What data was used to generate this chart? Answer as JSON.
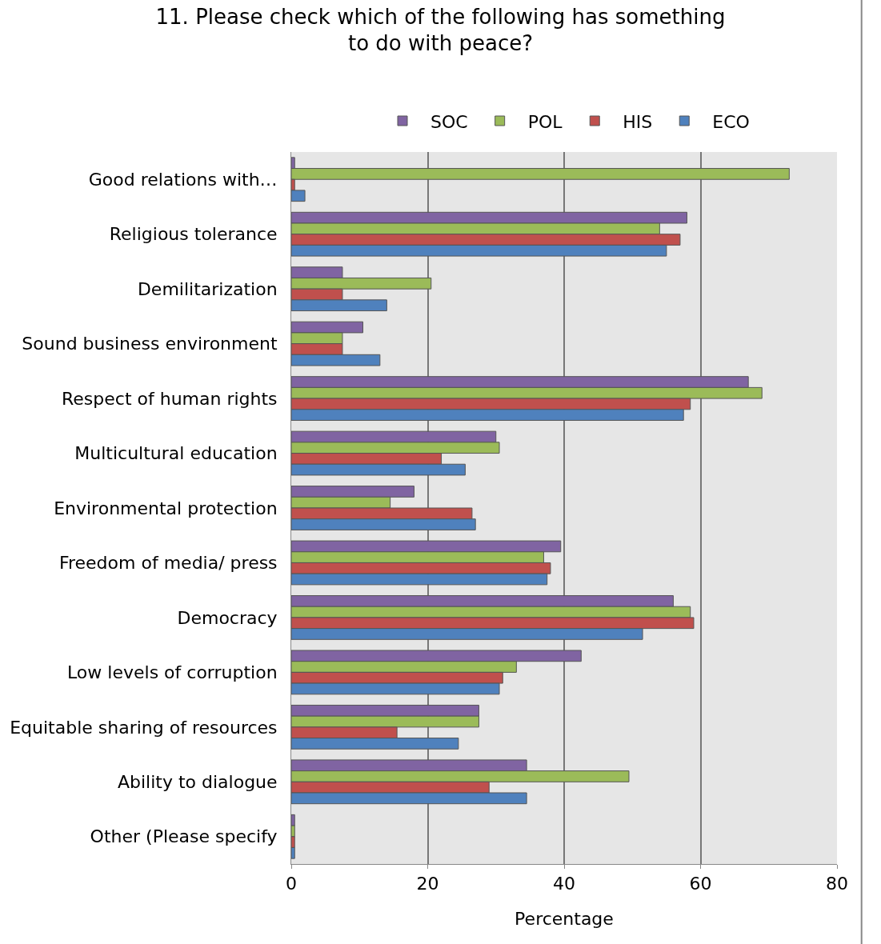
{
  "chart_data": {
    "type": "bar",
    "orientation": "horizontal",
    "title": "11. Please check which of the following has something\nto do with peace?",
    "xlabel": "Percentage",
    "categories": [
      "Good relations with…",
      "Religious tolerance",
      "Demilitarization",
      "Sound business environment",
      "Respect of human rights",
      "Multicultural education",
      "Environmental protection",
      "Freedom of media/ press",
      "Democracy",
      "Low levels of corruption",
      "Equitable sharing of resources",
      "Ability to dialogue",
      "Other (Please specify"
    ],
    "series": [
      {
        "name": "SOC",
        "color": "#8064a2",
        "values": [
          0.5,
          58,
          7.5,
          10.5,
          67,
          30,
          18,
          39.5,
          56,
          42.5,
          27.5,
          34.5,
          0.5
        ]
      },
      {
        "name": "POL",
        "color": "#9bbb59",
        "values": [
          73,
          54,
          20.5,
          7.5,
          69,
          30.5,
          14.5,
          37,
          58.5,
          33,
          27.5,
          49.5,
          0.5
        ]
      },
      {
        "name": "HIS",
        "color": "#c0504d",
        "values": [
          0.5,
          57,
          7.5,
          7.5,
          58.5,
          22,
          26.5,
          38,
          59,
          31,
          15.5,
          29,
          0.5
        ]
      },
      {
        "name": "ECO",
        "color": "#4f81bd",
        "values": [
          2,
          55,
          14,
          13,
          57.5,
          25.5,
          27,
          37.5,
          51.5,
          30.5,
          24.5,
          34.5,
          0.5
        ]
      }
    ],
    "xlim": [
      0,
      80
    ],
    "xticks": [
      0,
      20,
      40,
      60,
      80
    ],
    "grid": "x",
    "legend": "top"
  }
}
